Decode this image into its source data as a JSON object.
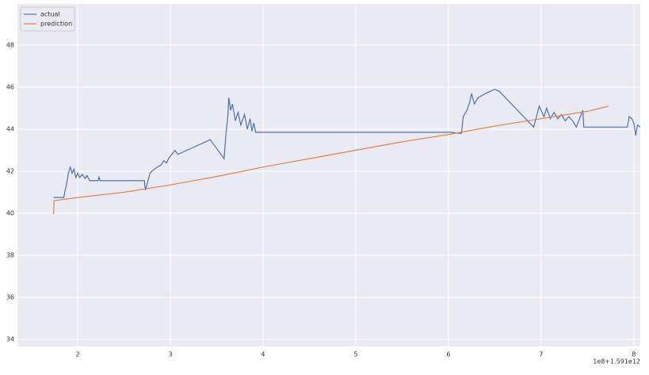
{
  "chart_data": {
    "type": "line",
    "x_offset_label": "1e8+1.591e12",
    "xlim": [
      1.35,
      8.07
    ],
    "ylim": [
      33.66,
      49.96
    ],
    "xticks": [
      2,
      3,
      4,
      5,
      6,
      7,
      8
    ],
    "yticks": [
      34,
      36,
      38,
      40,
      42,
      44,
      46,
      48
    ],
    "grid": true,
    "legend": "upper left",
    "series": [
      {
        "name": "actual",
        "color": "#4c72b0",
        "x": [
          1.74,
          1.85,
          1.86,
          1.88,
          1.9,
          1.92,
          1.94,
          1.96,
          1.98,
          2.0,
          2.02,
          2.05,
          2.08,
          2.1,
          2.13,
          2.15,
          2.22,
          2.23,
          2.24,
          2.72,
          2.73,
          2.75,
          2.78,
          2.8,
          2.83,
          2.86,
          2.9,
          2.93,
          2.96,
          2.98,
          3.05,
          3.08,
          3.43,
          3.58,
          3.6,
          3.62,
          3.63,
          3.65,
          3.67,
          3.7,
          3.73,
          3.76,
          3.8,
          3.83,
          3.86,
          3.88,
          3.9,
          3.92,
          6.03,
          6.14,
          6.16,
          6.2,
          6.23,
          6.25,
          6.28,
          6.32,
          6.36,
          6.4,
          6.45,
          6.5,
          6.55,
          6.92,
          6.98,
          7.0,
          7.03,
          7.06,
          7.1,
          7.14,
          7.18,
          7.22,
          7.26,
          7.3,
          7.34,
          7.38,
          7.45,
          7.46,
          7.93,
          7.95,
          7.98,
          8.0,
          8.02,
          8.04,
          8.07
        ],
        "values": [
          40.75,
          40.75,
          41.0,
          41.4,
          41.9,
          42.2,
          41.9,
          42.1,
          41.7,
          41.9,
          41.7,
          41.85,
          41.65,
          41.8,
          41.55,
          41.55,
          41.55,
          41.75,
          41.55,
          41.55,
          41.1,
          41.4,
          41.9,
          42.0,
          42.1,
          42.2,
          42.3,
          42.5,
          42.4,
          42.6,
          43.0,
          42.8,
          43.5,
          42.6,
          43.8,
          44.6,
          45.5,
          44.9,
          45.2,
          44.4,
          44.8,
          44.2,
          44.7,
          44.0,
          44.5,
          43.9,
          44.3,
          43.85,
          43.85,
          43.8,
          44.6,
          44.9,
          45.3,
          45.7,
          45.2,
          45.5,
          45.6,
          45.7,
          45.8,
          45.9,
          45.8,
          44.1,
          45.1,
          44.9,
          44.6,
          45.0,
          44.5,
          44.8,
          44.5,
          44.7,
          44.4,
          44.6,
          44.4,
          44.1,
          44.9,
          44.1,
          44.1,
          44.6,
          44.5,
          44.3,
          43.7,
          44.2,
          44.1
        ]
      },
      {
        "name": "prediction",
        "color": "#dd8452",
        "x": [
          1.74,
          1.745,
          2,
          2.5,
          3,
          3.5,
          4,
          4.5,
          5,
          5.5,
          6,
          6.5,
          7,
          7.5,
          7.73
        ],
        "values": [
          39.95,
          40.6,
          40.75,
          41.0,
          41.35,
          41.75,
          42.2,
          42.6,
          43.0,
          43.4,
          43.75,
          44.15,
          44.5,
          44.85,
          45.1
        ]
      }
    ]
  }
}
